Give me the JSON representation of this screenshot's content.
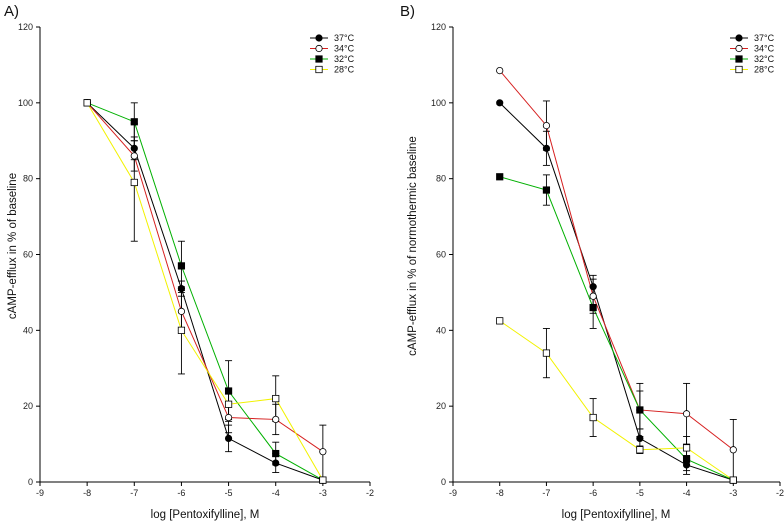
{
  "chart_data": [
    {
      "type": "line",
      "panel_label": "A)",
      "xlabel": "log [Pentoxifylline], M",
      "ylabel": "cAMP-efflux in % of baseline",
      "xlim": [
        -9,
        -2
      ],
      "ylim": [
        0,
        120
      ],
      "xticks": [
        -9,
        -8,
        -7,
        -6,
        -5,
        -4,
        -3,
        -2
      ],
      "yticks": [
        0,
        20,
        40,
        60,
        80,
        100,
        120
      ],
      "legend_position": "top-right",
      "x": [
        -8,
        -7,
        -6,
        -5,
        -4,
        -3
      ],
      "series": [
        {
          "name": "37°C",
          "color": "#000000",
          "marker": "filled-circle",
          "values": [
            100,
            88,
            51,
            11.5,
            5,
            0.5
          ],
          "errors": [
            0,
            3,
            2,
            3.5,
            2.5,
            0.5
          ]
        },
        {
          "name": "34°C",
          "color": "#d62020",
          "marker": "open-circle",
          "values": [
            100,
            86,
            45,
            17,
            16.5,
            8
          ],
          "errors": [
            0,
            4,
            5,
            4,
            4,
            7
          ]
        },
        {
          "name": "32°C",
          "color": "#00b000",
          "marker": "filled-square",
          "values": [
            100,
            95,
            57,
            24,
            7.5,
            0.5
          ],
          "errors": [
            0,
            5,
            6.5,
            8,
            3,
            0.5
          ]
        },
        {
          "name": "28°C",
          "color": "#f2f200",
          "marker": "open-square",
          "values": [
            100,
            79,
            40,
            20.5,
            22,
            0.5
          ],
          "errors": [
            0,
            15.5,
            11.5,
            4,
            6,
            0.5
          ]
        }
      ]
    },
    {
      "type": "line",
      "panel_label": "B)",
      "xlabel": "log [Pentoxifylline], M",
      "ylabel": "cAMP-efflux in % of normothermic baseline",
      "xlim": [
        -9,
        -2
      ],
      "ylim": [
        0,
        120
      ],
      "xticks": [
        -9,
        -8,
        -7,
        -6,
        -5,
        -4,
        -3,
        -2
      ],
      "yticks": [
        0,
        20,
        40,
        60,
        80,
        100,
        120
      ],
      "legend_position": "top-right",
      "x": [
        -8,
        -7,
        -6,
        -5,
        -4,
        -3
      ],
      "series": [
        {
          "name": "37°C",
          "color": "#000000",
          "marker": "filled-circle",
          "values": [
            100,
            88,
            51.5,
            11.5,
            4.5,
            0.5
          ],
          "errors": [
            0,
            4.5,
            3,
            2.5,
            2.5,
            0.5
          ]
        },
        {
          "name": "34°C",
          "color": "#d62020",
          "marker": "open-circle",
          "values": [
            108.5,
            94,
            49,
            19,
            18,
            8.5
          ],
          "errors": [
            0,
            6.5,
            4.5,
            7,
            8,
            8
          ]
        },
        {
          "name": "32°C",
          "color": "#00b000",
          "marker": "filled-square",
          "values": [
            80.5,
            77,
            46,
            19,
            6,
            0.5
          ],
          "errors": [
            0,
            4,
            5.5,
            5,
            3,
            0.5
          ]
        },
        {
          "name": "28°C",
          "color": "#f2f200",
          "marker": "open-square",
          "values": [
            42.5,
            34,
            17,
            8.5,
            9,
            0.5
          ],
          "errors": [
            0,
            6.5,
            5,
            1,
            3,
            0.5
          ]
        }
      ]
    }
  ]
}
